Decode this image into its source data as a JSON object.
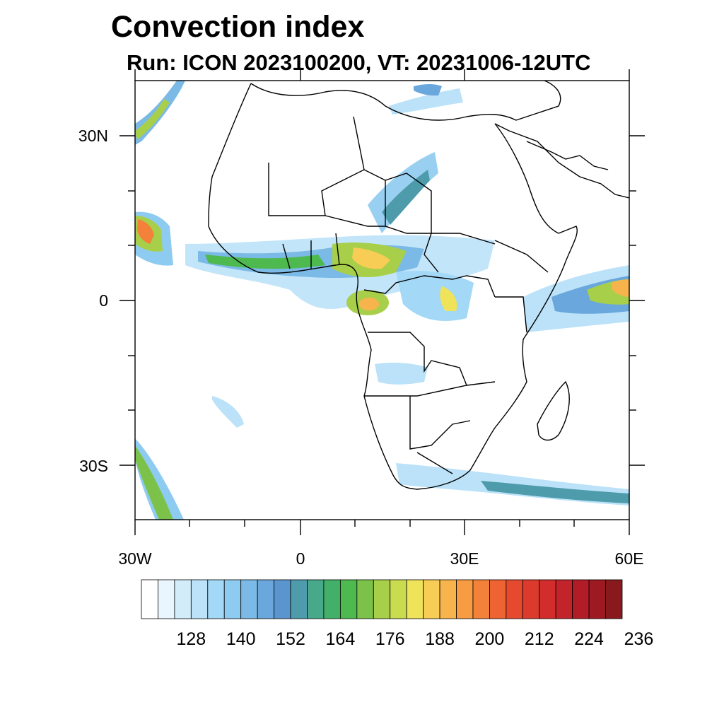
{
  "title": "Convection index",
  "subtitle": "Run: ICON 2023100200,  VT: 20231006-12UTC",
  "map": {
    "region": "Africa",
    "lon_range": [
      -30,
      60
    ],
    "lat_range": [
      -40,
      40
    ],
    "lon_ticks": [
      {
        "lon": -30,
        "label": "30W"
      },
      {
        "lon": 0,
        "label": "0"
      },
      {
        "lon": 30,
        "label": "30E"
      },
      {
        "lon": 60,
        "label": "60E"
      }
    ],
    "lat_ticks": [
      {
        "lat": 30,
        "label": "30N"
      },
      {
        "lat": 0,
        "label": "0"
      },
      {
        "lat": -30,
        "label": "30S"
      }
    ]
  },
  "colorbar": {
    "colors": [
      "#ffffff",
      "#eaf6fd",
      "#d2ecfa",
      "#bbe2f8",
      "#a3d8f6",
      "#8ecbf0",
      "#7bb9e6",
      "#6aa7dc",
      "#5a95d0",
      "#4e9bab",
      "#48a88a",
      "#43b06a",
      "#4db94e",
      "#7cc24a",
      "#a8cf4a",
      "#c9dc50",
      "#efe35a",
      "#f7cd55",
      "#f8b44c",
      "#f79c43",
      "#f3813a",
      "#ed6332",
      "#e54a2e",
      "#dc3a2c",
      "#d22c2c",
      "#c3232a",
      "#b11c26",
      "#9e1a22",
      "#881a1d"
    ],
    "labels": [
      "128",
      "140",
      "152",
      "164",
      "176",
      "188",
      "200",
      "212",
      "224",
      "236"
    ]
  }
}
